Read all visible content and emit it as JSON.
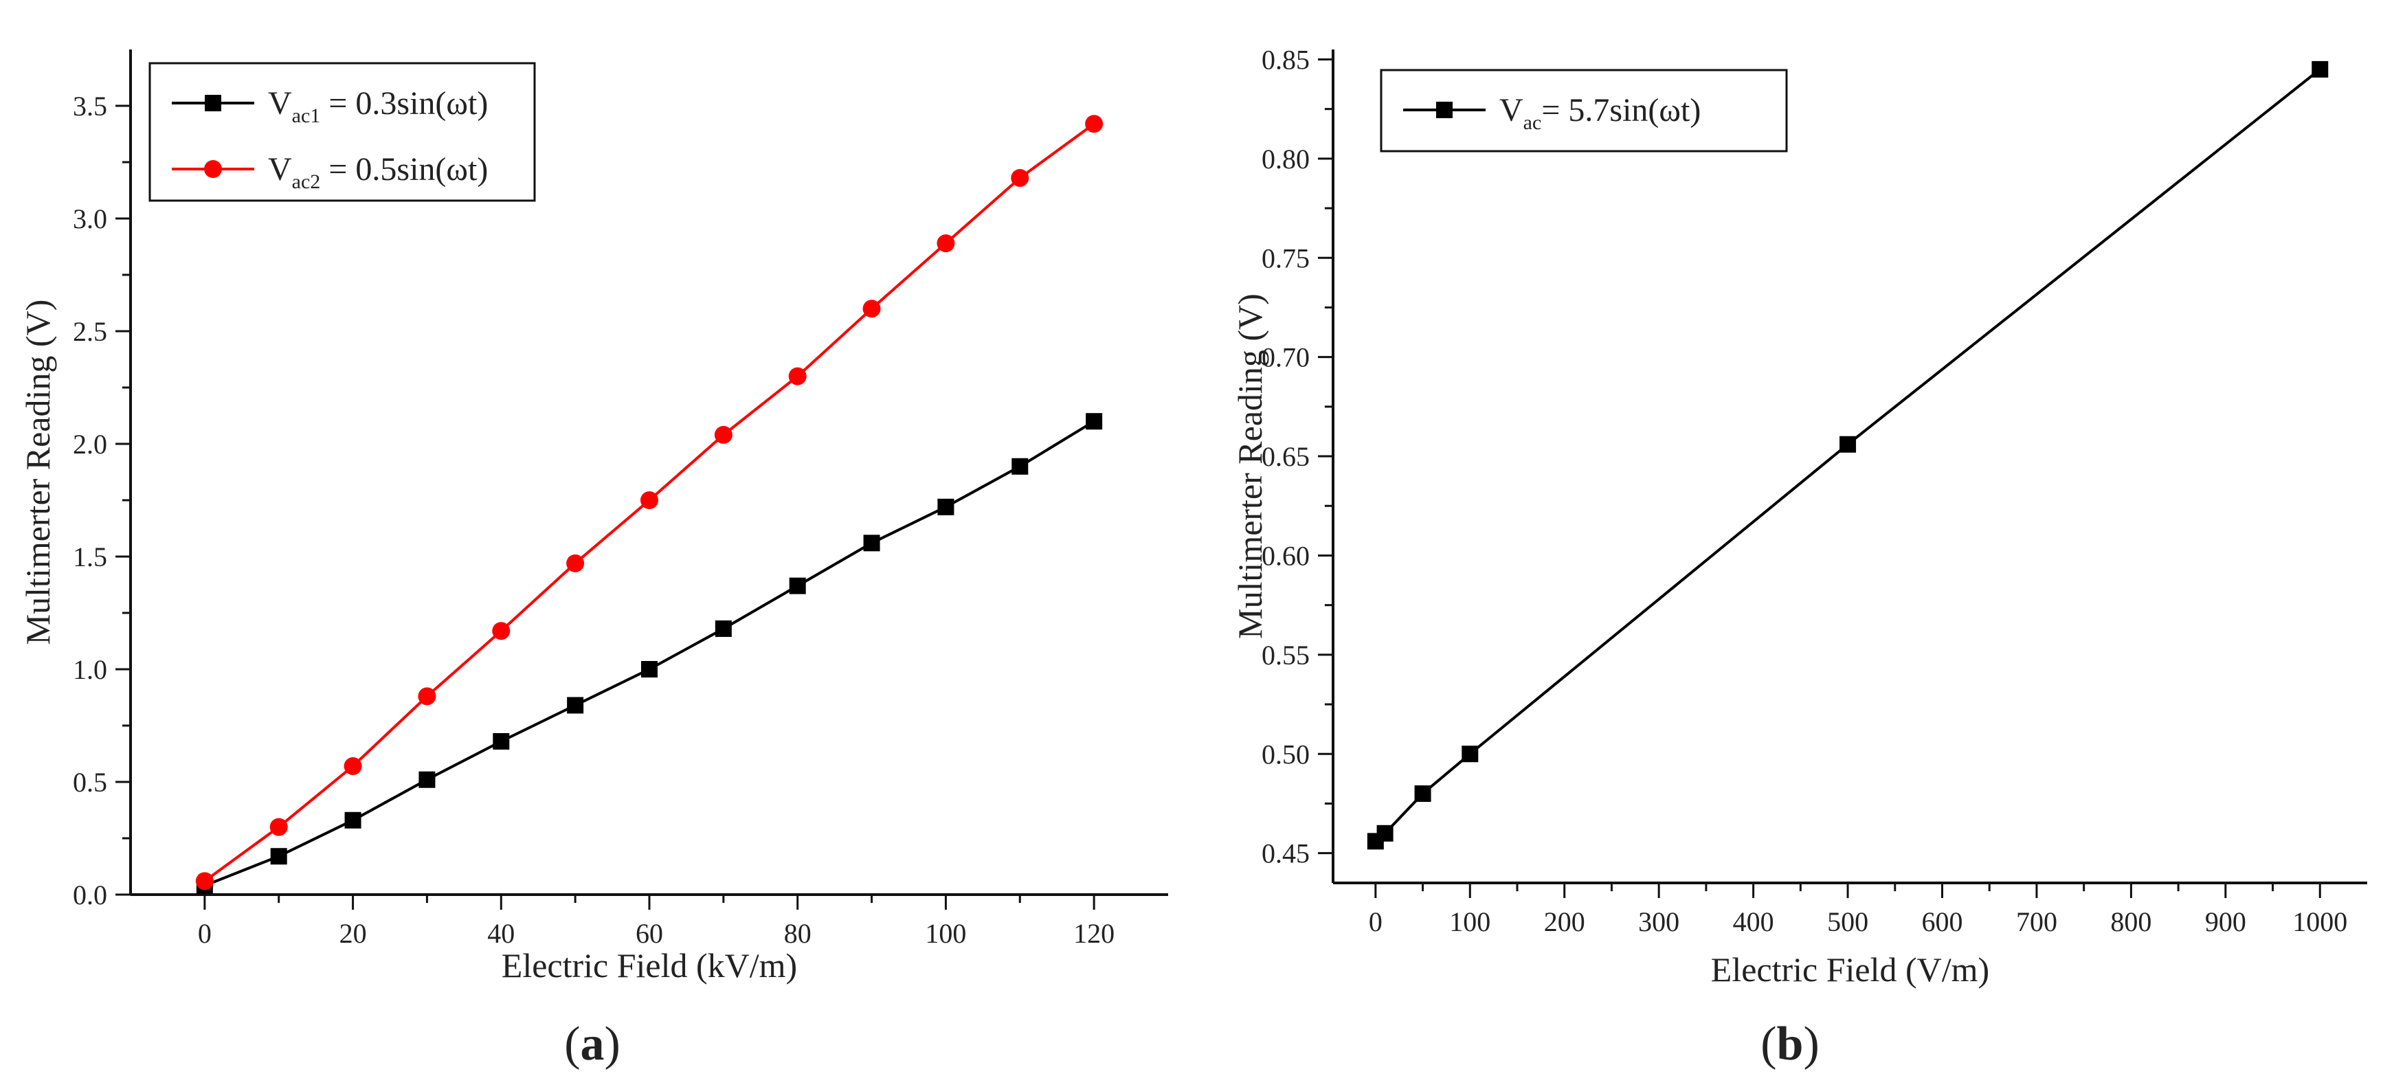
{
  "chart_data": [
    {
      "panel": "a",
      "type": "line",
      "xlabel": "Electric Field (kV/m)",
      "ylabel": "Multimerter Reading (V)",
      "xlim": [
        -10,
        130
      ],
      "ylim": [
        0,
        3.75
      ],
      "xticks": [
        0,
        20,
        40,
        60,
        80,
        100,
        120
      ],
      "yticks": [
        0.0,
        0.5,
        1.0,
        1.5,
        2.0,
        2.5,
        3.0,
        3.5
      ],
      "ytick_labels": [
        "0.0",
        "0.5",
        "1.0",
        "1.5",
        "2.0",
        "2.5",
        "3.0",
        "3.5"
      ],
      "legend_position": "top-left",
      "series": [
        {
          "name": "Vac1 = 0.3sin(ωt)",
          "legend_main": "V",
          "legend_sub": "ac1",
          "legend_rest": " = 0.3sin(ωt)",
          "color": "#000000",
          "marker": "square",
          "x": [
            0,
            10,
            20,
            30,
            40,
            50,
            60,
            70,
            80,
            90,
            100,
            110,
            120
          ],
          "values": [
            0.04,
            0.17,
            0.33,
            0.51,
            0.68,
            0.84,
            1.0,
            1.18,
            1.37,
            1.56,
            1.72,
            1.9,
            2.1
          ]
        },
        {
          "name": "Vac2 = 0.5sin(ωt)",
          "legend_main": "V",
          "legend_sub": "ac2",
          "legend_rest": " = 0.5sin(ωt)",
          "color": "#ff0000",
          "marker": "circle",
          "x": [
            0,
            10,
            20,
            30,
            40,
            50,
            60,
            70,
            80,
            90,
            100,
            110,
            120
          ],
          "values": [
            0.06,
            0.3,
            0.57,
            0.88,
            1.17,
            1.47,
            1.75,
            2.04,
            2.3,
            2.6,
            2.89,
            3.18,
            3.42
          ]
        }
      ],
      "caption_label": "a"
    },
    {
      "panel": "b",
      "type": "line",
      "xlabel": "Electric Field (V/m)",
      "ylabel": "Multimerter Reading (V)",
      "xlim": [
        -45,
        1050
      ],
      "ylim": [
        0.435,
        0.855
      ],
      "xticks": [
        0,
        100,
        200,
        300,
        400,
        500,
        600,
        700,
        800,
        900,
        1000
      ],
      "yticks": [
        0.45,
        0.5,
        0.55,
        0.6,
        0.65,
        0.7,
        0.75,
        0.8,
        0.85
      ],
      "ytick_labels": [
        "0.45",
        "0.50",
        "0.55",
        "0.60",
        "0.65",
        "0.70",
        "0.75",
        "0.80",
        "0.85"
      ],
      "legend_position": "top-left",
      "series": [
        {
          "name": "Vac= 5.7sin(ωt)",
          "legend_main": "V",
          "legend_sub": "ac",
          "legend_rest": "= 5.7sin(ωt)",
          "color": "#000000",
          "marker": "square",
          "x": [
            0,
            10,
            50,
            100,
            500,
            1000
          ],
          "values": [
            0.456,
            0.46,
            0.48,
            0.5,
            0.656,
            0.845
          ]
        }
      ],
      "caption_label": "b"
    }
  ]
}
